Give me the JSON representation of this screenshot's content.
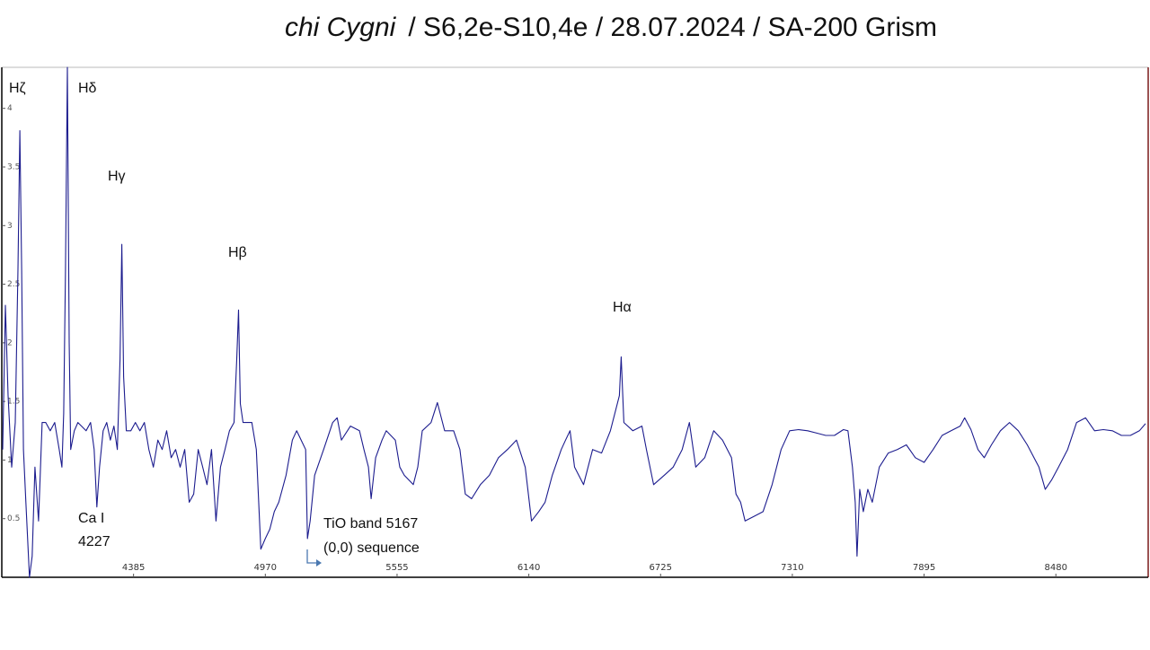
{
  "chart_data": {
    "type": "line",
    "title_object": "chi Cygni",
    "title": "/ S6,2e-S10,4e / 28.07.2024 / SA-200 Grism",
    "color": "#1c1c8e",
    "xlim": [
      3800,
      8890
    ],
    "ylim": [
      0,
      4.35
    ],
    "xticks": [
      4385,
      4970,
      5555,
      6140,
      6725,
      7310,
      7895,
      8480
    ],
    "yticks": [
      0.5,
      1,
      1.5,
      2,
      2.5,
      3,
      3.5,
      4
    ],
    "annotations": [
      "Hζ",
      "Hδ",
      "Hγ",
      "Hβ",
      "Hα",
      "Ca I",
      "4227",
      "TiO band 5167",
      "(0,0) sequence"
    ],
    "x": [
      3804,
      3816,
      3828,
      3844,
      3860,
      3872,
      3880,
      3888,
      3896,
      3907,
      3923,
      3935,
      3947,
      3963,
      3979,
      3995,
      4015,
      4035,
      4055,
      4067,
      4075,
      4083,
      4091,
      4099,
      4106,
      4122,
      4138,
      4154,
      4174,
      4194,
      4210,
      4222,
      4234,
      4250,
      4266,
      4282,
      4298,
      4313,
      4325,
      4333,
      4341,
      4353,
      4373,
      4393,
      4413,
      4433,
      4453,
      4473,
      4493,
      4512,
      4532,
      4552,
      4572,
      4592,
      4612,
      4632,
      4652,
      4672,
      4692,
      4711,
      4731,
      4751,
      4771,
      4791,
      4811,
      4831,
      4843,
      4851,
      4859,
      4871,
      4910,
      4930,
      4950,
      4970,
      4990,
      5010,
      5030,
      5062,
      5090,
      5109,
      5129,
      5149,
      5157,
      5169,
      5189,
      5229,
      5269,
      5289,
      5308,
      5348,
      5388,
      5408,
      5428,
      5440,
      5460,
      5488,
      5507,
      5547,
      5567,
      5587,
      5627,
      5647,
      5667,
      5706,
      5734,
      5766,
      5806,
      5834,
      5858,
      5886,
      5925,
      5965,
      6005,
      6045,
      6085,
      6124,
      6152,
      6184,
      6212,
      6244,
      6284,
      6303,
      6323,
      6343,
      6383,
      6423,
      6463,
      6502,
      6522,
      6542,
      6550,
      6562,
      6602,
      6642,
      6662,
      6694,
      6741,
      6781,
      6821,
      6853,
      6881,
      6921,
      6961,
      7000,
      7040,
      7060,
      7080,
      7100,
      7140,
      7180,
      7220,
      7260,
      7298,
      7338,
      7378,
      7418,
      7458,
      7497,
      7537,
      7557,
      7577,
      7589,
      7597,
      7609,
      7625,
      7645,
      7665,
      7696,
      7736,
      7776,
      7816,
      7856,
      7895,
      7935,
      7975,
      8015,
      8055,
      8075,
      8103,
      8134,
      8162,
      8194,
      8234,
      8274,
      8313,
      8353,
      8405,
      8433,
      8461,
      8492,
      8532,
      8572,
      8612,
      8652,
      8691,
      8731,
      8771,
      8811,
      8851,
      8878
    ],
    "series": [
      {
        "values": [
          1.09,
          2.32,
          1.55,
          0.94,
          1.32,
          2.63,
          3.81,
          2.63,
          1.09,
          0.64,
          0,
          0.18,
          0.94,
          0.48,
          1.32,
          1.32,
          1.25,
          1.32,
          1.09,
          0.94,
          1.4,
          2.63,
          4.35,
          2.01,
          1.09,
          1.25,
          1.32,
          1.29,
          1.25,
          1.32,
          1.09,
          0.6,
          0.94,
          1.25,
          1.32,
          1.17,
          1.29,
          1.09,
          1.86,
          2.84,
          1.71,
          1.25,
          1.25,
          1.32,
          1.25,
          1.32,
          1.09,
          0.94,
          1.17,
          1.09,
          1.25,
          1.02,
          1.09,
          0.94,
          1.09,
          0.64,
          0.71,
          1.09,
          0.94,
          0.79,
          1.09,
          0.48,
          0.94,
          1.09,
          1.25,
          1.32,
          1.86,
          2.28,
          1.48,
          1.32,
          1.32,
          1.09,
          0.24,
          0.33,
          0.41,
          0.56,
          0.64,
          0.87,
          1.17,
          1.25,
          1.17,
          1.09,
          0.33,
          0.48,
          0.87,
          1.09,
          1.32,
          1.36,
          1.17,
          1.29,
          1.25,
          1.09,
          0.94,
          0.67,
          1.02,
          1.17,
          1.25,
          1.17,
          0.94,
          0.87,
          0.79,
          0.94,
          1.25,
          1.32,
          1.49,
          1.25,
          1.25,
          1.09,
          0.71,
          0.67,
          0.79,
          0.87,
          1.02,
          1.09,
          1.17,
          0.94,
          0.48,
          0.56,
          0.64,
          0.87,
          1.09,
          1.17,
          1.25,
          0.94,
          0.79,
          1.09,
          1.06,
          1.25,
          1.4,
          1.55,
          1.88,
          1.32,
          1.25,
          1.29,
          1.09,
          0.79,
          0.87,
          0.94,
          1.09,
          1.32,
          0.94,
          1.02,
          1.25,
          1.17,
          1.02,
          0.71,
          0.64,
          0.48,
          0.52,
          0.56,
          0.79,
          1.09,
          1.25,
          1.26,
          1.25,
          1.23,
          1.21,
          1.21,
          1.26,
          1.25,
          0.94,
          0.64,
          0.18,
          0.75,
          0.56,
          0.75,
          0.64,
          0.94,
          1.06,
          1.09,
          1.13,
          1.02,
          0.98,
          1.09,
          1.21,
          1.25,
          1.29,
          1.36,
          1.26,
          1.09,
          1.02,
          1.13,
          1.25,
          1.32,
          1.25,
          1.13,
          0.94,
          0.75,
          0.83,
          0.94,
          1.09,
          1.32,
          1.36,
          1.25,
          1.26,
          1.25,
          1.21,
          1.21,
          1.25,
          1.31
        ]
      }
    ]
  }
}
